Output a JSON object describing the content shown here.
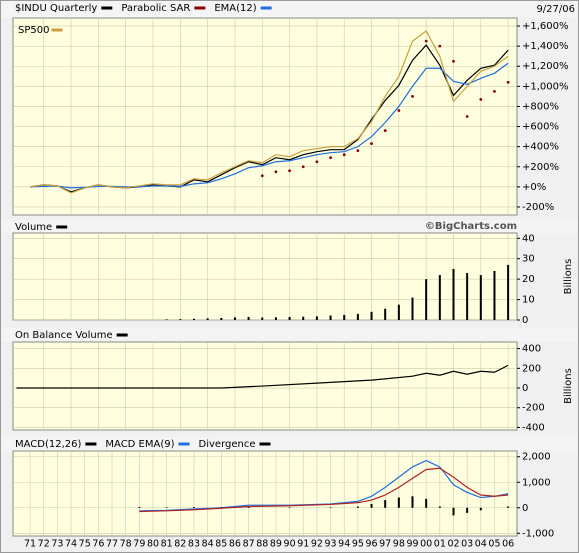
{
  "chart_data": [
    {
      "type": "line",
      "date": "9/27/06",
      "x": [
        1971,
        1972,
        1973,
        1974,
        1975,
        1976,
        1977,
        1978,
        1979,
        1980,
        1981,
        1982,
        1983,
        1984,
        1985,
        1986,
        1987,
        1988,
        1989,
        1990,
        1991,
        1992,
        1993,
        1994,
        1995,
        1996,
        1997,
        1998,
        1999,
        2000,
        2001,
        2002,
        2003,
        2004,
        2005,
        2006
      ],
      "series": [
        {
          "name": "$INDU Quarterly",
          "color": "#000000",
          "style": "line",
          "legend": "header",
          "values": [
            0,
            20,
            10,
            -50,
            -10,
            20,
            0,
            -10,
            0,
            20,
            10,
            0,
            70,
            50,
            120,
            190,
            250,
            220,
            290,
            270,
            320,
            350,
            370,
            370,
            470,
            670,
            860,
            1010,
            1260,
            1410,
            1210,
            910,
            1060,
            1180,
            1210,
            1360
          ]
        },
        {
          "name": "Parabolic SAR",
          "color": "#8b0000",
          "style": "dots",
          "legend": "header",
          "values": [
            null,
            null,
            null,
            null,
            null,
            null,
            null,
            null,
            null,
            null,
            null,
            null,
            null,
            null,
            null,
            null,
            null,
            110,
            150,
            160,
            200,
            250,
            290,
            320,
            360,
            430,
            560,
            760,
            900,
            1450,
            1400,
            1250,
            700,
            870,
            950,
            1040
          ]
        },
        {
          "name": "EMA(12)",
          "color": "#1e6fe0",
          "style": "line",
          "legend": "header",
          "values": [
            0,
            5,
            8,
            -10,
            -5,
            5,
            5,
            0,
            0,
            10,
            10,
            5,
            30,
            40,
            80,
            130,
            190,
            210,
            250,
            260,
            290,
            320,
            340,
            350,
            400,
            500,
            640,
            800,
            1000,
            1180,
            1180,
            1050,
            1020,
            1080,
            1130,
            1230
          ]
        },
        {
          "name": "SP500",
          "color": "#c8a040",
          "style": "line",
          "legend": "upper left",
          "values": [
            0,
            20,
            10,
            -60,
            -10,
            20,
            0,
            -10,
            10,
            30,
            20,
            20,
            80,
            70,
            140,
            200,
            260,
            240,
            320,
            300,
            360,
            380,
            400,
            400,
            480,
            650,
            900,
            1100,
            1450,
            1550,
            1300,
            850,
            1000,
            1150,
            1200,
            1300
          ]
        }
      ],
      "xlim": [
        1969.75,
        2006.65
      ],
      "xticks": [
        1972,
        1974,
        1976,
        1978,
        1980,
        1982,
        1984,
        1986,
        1988,
        1990,
        1992,
        1994,
        1996,
        1998,
        2000,
        2002,
        2004,
        2006
      ],
      "ylim": [
        -280,
        1680
      ],
      "yticks": [
        {
          "value": 1600,
          "label": "+1,600%"
        },
        {
          "value": 1400,
          "label": "+1,400%"
        },
        {
          "value": 1200,
          "label": "+1,200%"
        },
        {
          "value": 1000,
          "label": "+1,000%"
        },
        {
          "value": 800,
          "label": "+800%"
        },
        {
          "value": 600,
          "label": "+600%"
        },
        {
          "value": 400,
          "label": "+400%"
        },
        {
          "value": 200,
          "label": "+200%"
        },
        {
          "value": 0,
          "label": "+0%"
        },
        {
          "value": -200,
          "label": "-200%"
        }
      ],
      "grid": true
    },
    {
      "type": "bar",
      "watermark": "©BigCharts.com",
      "y_label": "Billions",
      "x": [
        1981,
        1982,
        1983,
        1984,
        1985,
        1986,
        1987,
        1988,
        1989,
        1990,
        1991,
        1992,
        1993,
        1994,
        1995,
        1996,
        1997,
        1998,
        1999,
        2000,
        2001,
        2002,
        2003,
        2004,
        2005,
        2006
      ],
      "series": [
        {
          "name": "Volume",
          "color": "#000000",
          "style": "bars",
          "legend": "header",
          "values": [
            0.3,
            0.4,
            0.6,
            0.8,
            1,
            1.3,
            1.5,
            1.2,
            1.3,
            1.5,
            1.6,
            1.8,
            2.2,
            2.5,
            3,
            4,
            5.5,
            7.5,
            11,
            20,
            22,
            25,
            23,
            22,
            24,
            27
          ]
        }
      ],
      "xlim": [
        1969.75,
        2006.65
      ],
      "xticks": [
        1972,
        1974,
        1976,
        1978,
        1980,
        1982,
        1984,
        1986,
        1988,
        1990,
        1992,
        1994,
        1996,
        1998,
        2000,
        2002,
        2004,
        2006
      ],
      "ylim": [
        0,
        42.6
      ],
      "yticks": [
        40,
        30,
        20,
        10,
        0
      ],
      "grid": true
    },
    {
      "type": "line",
      "y_label": "Billions",
      "x": [
        1970,
        1985,
        1988,
        1992,
        1996,
        1999,
        2000,
        2001,
        2002,
        2003,
        2004,
        2005,
        2006
      ],
      "series": [
        {
          "name": "On Balance Volume",
          "color": "#000000",
          "style": "line",
          "legend": "header",
          "values": [
            0,
            0,
            20,
            50,
            80,
            120,
            150,
            130,
            170,
            140,
            170,
            160,
            230
          ]
        }
      ],
      "xlim": [
        1969.75,
        2006.65
      ],
      "xticks": [
        1972,
        1974,
        1976,
        1978,
        1980,
        1982,
        1984,
        1986,
        1988,
        1990,
        1992,
        1994,
        1996,
        1998,
        2000,
        2002,
        2004,
        2006
      ],
      "ylim": [
        -426,
        467
      ],
      "yticks": [
        400,
        200,
        0,
        -200,
        -400
      ],
      "grid": true
    },
    {
      "type": "line",
      "x": [
        1979,
        1981,
        1983,
        1985,
        1987,
        1990,
        1993,
        1995,
        1996,
        1997,
        1998,
        1999,
        2000,
        2001,
        2002,
        2003,
        2004,
        2005,
        2006
      ],
      "series": [
        {
          "name": "MACD(12,26)",
          "color": "#000000",
          "style": "none",
          "legend": "header",
          "values": null
        },
        {
          "name": "MACD EMA(9)",
          "color": "#1e6fe0",
          "style": "line",
          "legend": "header",
          "values": [
            -120,
            -100,
            -50,
            0,
            100,
            100,
            150,
            250,
            450,
            800,
            1200,
            1600,
            1850,
            1600,
            900,
            600,
            400,
            450,
            550
          ]
        },
        {
          "name": "Divergence",
          "color": "#000000",
          "style": "bars",
          "legend": "header",
          "values": [
            30,
            20,
            30,
            20,
            50,
            20,
            20,
            50,
            150,
            300,
            400,
            450,
            350,
            50,
            -300,
            -200,
            -100,
            0,
            50
          ]
        }
      ],
      "signal": {
        "color": "#b22222",
        "values": [
          -150,
          -120,
          -80,
          -20,
          50,
          80,
          130,
          200,
          300,
          500,
          800,
          1150,
          1500,
          1550,
          1200,
          800,
          500,
          450,
          500
        ]
      },
      "xlim": [
        1969.75,
        2006.65
      ],
      "xticks": [
        {
          "value": 1971,
          "label": "71"
        },
        {
          "value": 1972,
          "label": "72"
        },
        {
          "value": 1973,
          "label": "73"
        },
        {
          "value": 1974,
          "label": "74"
        },
        {
          "value": 1975,
          "label": "75"
        },
        {
          "value": 1976,
          "label": "76"
        },
        {
          "value": 1977,
          "label": "77"
        },
        {
          "value": 1978,
          "label": "78"
        },
        {
          "value": 1979,
          "label": "79"
        },
        {
          "value": 1980,
          "label": "80"
        },
        {
          "value": 1981,
          "label": "81"
        },
        {
          "value": 1982,
          "label": "82"
        },
        {
          "value": 1983,
          "label": "83"
        },
        {
          "value": 1984,
          "label": "84"
        },
        {
          "value": 1985,
          "label": "85"
        },
        {
          "value": 1986,
          "label": "86"
        },
        {
          "value": 1987,
          "label": "87"
        },
        {
          "value": 1988,
          "label": "88"
        },
        {
          "value": 1989,
          "label": "89"
        },
        {
          "value": 1990,
          "label": "90"
        },
        {
          "value": 1991,
          "label": "91"
        },
        {
          "value": 1992,
          "label": "92"
        },
        {
          "value": 1993,
          "label": "93"
        },
        {
          "value": 1994,
          "label": "94"
        },
        {
          "value": 1995,
          "label": "95"
        },
        {
          "value": 1996,
          "label": "96"
        },
        {
          "value": 1997,
          "label": "97"
        },
        {
          "value": 1998,
          "label": "98"
        },
        {
          "value": 1999,
          "label": "99"
        },
        {
          "value": 2000,
          "label": "00"
        },
        {
          "value": 2001,
          "label": "01"
        },
        {
          "value": 2002,
          "label": "02"
        },
        {
          "value": 2003,
          "label": "03"
        },
        {
          "value": 2004,
          "label": "04"
        },
        {
          "value": 2005,
          "label": "05"
        },
        {
          "value": 2006,
          "label": "06"
        }
      ],
      "ylim": [
        -1107,
        2225
      ],
      "yticks": [
        {
          "value": 2000,
          "label": "2,000"
        },
        {
          "value": 1000,
          "label": "1,000"
        },
        0,
        {
          "value": -1000,
          "label": "-1,000"
        }
      ],
      "grid": true
    }
  ]
}
